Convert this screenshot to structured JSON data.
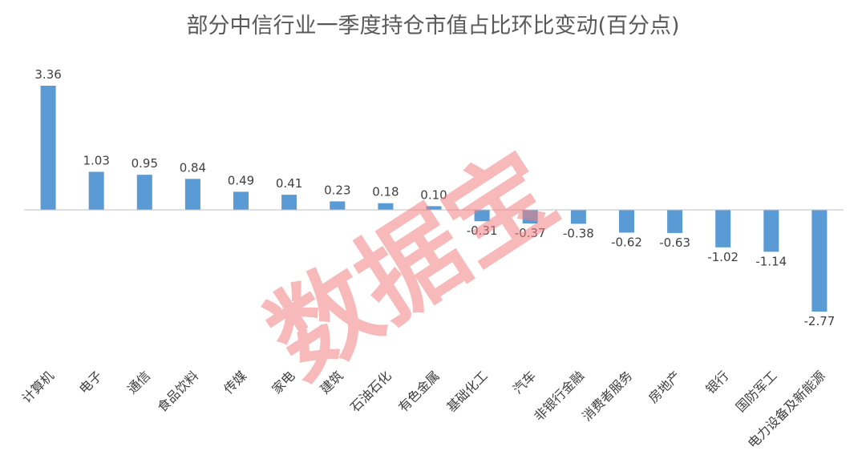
{
  "chart_data": {
    "type": "bar",
    "title": "部分中信行业一季度持仓市值占比环比变动(百分点)",
    "categories": [
      "计算机",
      "电子",
      "通信",
      "食品饮料",
      "传媒",
      "家电",
      "建筑",
      "石油石化",
      "有色金属",
      "基础化工",
      "汽车",
      "非银行金融",
      "消费者服务",
      "房地产",
      "银行",
      "国防军工",
      "电力设备及新能源"
    ],
    "values": [
      3.36,
      1.03,
      0.95,
      0.84,
      0.49,
      0.41,
      0.23,
      0.18,
      0.1,
      -0.31,
      -0.37,
      -0.38,
      -0.62,
      -0.63,
      -1.02,
      -1.14,
      -2.77
    ],
    "value_labels": [
      "3.36",
      "1.03",
      "0.95",
      "0.84",
      "0.49",
      "0.41",
      "0.23",
      "0.18",
      "0.10",
      "-0.31",
      "-0.37",
      "-0.38",
      "-0.62",
      "-0.63",
      "-1.02",
      "-1.14",
      "-2.77"
    ],
    "ylim": [
      -2.77,
      3.36
    ],
    "grid": false,
    "bar_color": "#5b9bd5",
    "axis_color": "#bfbfbf"
  },
  "watermark": "数据宝",
  "watermark_color": "#f08080"
}
